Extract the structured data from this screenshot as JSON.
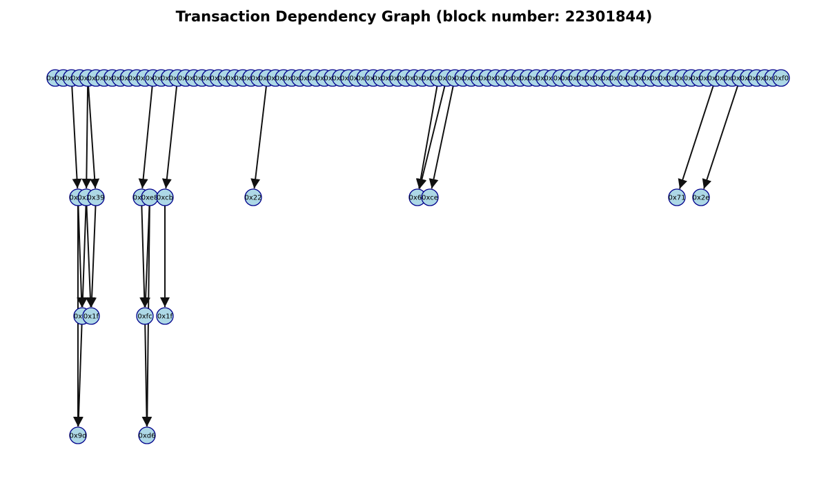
{
  "title": "Transaction Dependency Graph (block number: 22301844)",
  "colors": {
    "node_fill": "#add8e6",
    "node_stroke": "#00008b",
    "edge": "#111111"
  },
  "nodes": {
    "row0": [
      "0x51",
      "0x6b",
      "0x5e",
      "0x0b",
      "0x4c",
      "0x2e",
      "0x07",
      "0xe1",
      "0x5b",
      "0xa7",
      "0x80",
      "0x43",
      "0x9f",
      "0x41",
      "0xd7",
      "0x3b",
      "0x0f",
      "0x3d",
      "0x86",
      "0x02",
      "0x2c",
      "0x2b",
      "0xd4",
      "0x7a",
      "0x5d",
      "0xc9",
      "0x4b",
      "0xe2",
      "0x3a",
      "0x91",
      "0xd6",
      "0xb1",
      "0x7e",
      "0x09",
      "0x90",
      "0x8e",
      "0x44",
      "0xf0",
      "0x56",
      "0xf5",
      "0x8a",
      "0x77",
      "0x6c",
      "0x21",
      "0x03",
      "0x98",
      "0x5d",
      "0x98",
      "0xab",
      "0x6f",
      "0x0c",
      "0x51",
      "0x1e",
      "0x49",
      "0xdb",
      "0xc2",
      "0x1b",
      "0x05",
      "0xa2",
      "0x7b",
      "0x40",
      "0x18",
      "0xf8",
      "0xe5",
      "0x18",
      "0x61",
      "0x59",
      "0xa4",
      "0x7e",
      "0x13",
      "0x0f",
      "0x98",
      "0xa1",
      "0x26",
      "0x2b",
      "0x6e",
      "0x9a",
      "0x3e",
      "0x6f",
      "0xb4",
      "0x16",
      "0xc7",
      "0x8d",
      "0x13",
      "0xa5",
      "0xc9",
      "0x91",
      "0x9a",
      "0x0e",
      "0xf0"
    ],
    "row1": [
      "0x3b",
      "0x26",
      "0x39",
      "0xa9",
      "0xe8",
      "0xcb",
      "0x22",
      "0x60",
      "0xce",
      "0x71",
      "0x2e"
    ],
    "row2": [
      "0x6c",
      "0x1f",
      "0xfc",
      "0x1f"
    ],
    "row3": [
      "0x9d",
      "0xd6"
    ]
  },
  "edges": [
    [
      "r0:2",
      "r1:0"
    ],
    [
      "r0:4",
      "r1:1"
    ],
    [
      "r0:4",
      "r1:2"
    ],
    [
      "r0:12",
      "r1:3"
    ],
    [
      "r0:15",
      "r1:5"
    ],
    [
      "r0:26",
      "r1:6"
    ],
    [
      "r0:47",
      "r1:7"
    ],
    [
      "r0:48",
      "r1:7"
    ],
    [
      "r0:49",
      "r1:8"
    ],
    [
      "r0:81",
      "r1:9"
    ],
    [
      "r0:84",
      "r1:10"
    ],
    [
      "r1:0",
      "r2:0"
    ],
    [
      "r1:1",
      "r2:0"
    ],
    [
      "r1:1",
      "r2:1"
    ],
    [
      "r1:2",
      "r2:1"
    ],
    [
      "r1:3",
      "r2:2"
    ],
    [
      "r1:4",
      "r2:2"
    ],
    [
      "r1:5",
      "r2:3"
    ],
    [
      "r1:0",
      "r3:0"
    ],
    [
      "r2:0",
      "r3:0"
    ],
    [
      "r1:4",
      "r3:1"
    ],
    [
      "r2:2",
      "r3:1"
    ]
  ]
}
